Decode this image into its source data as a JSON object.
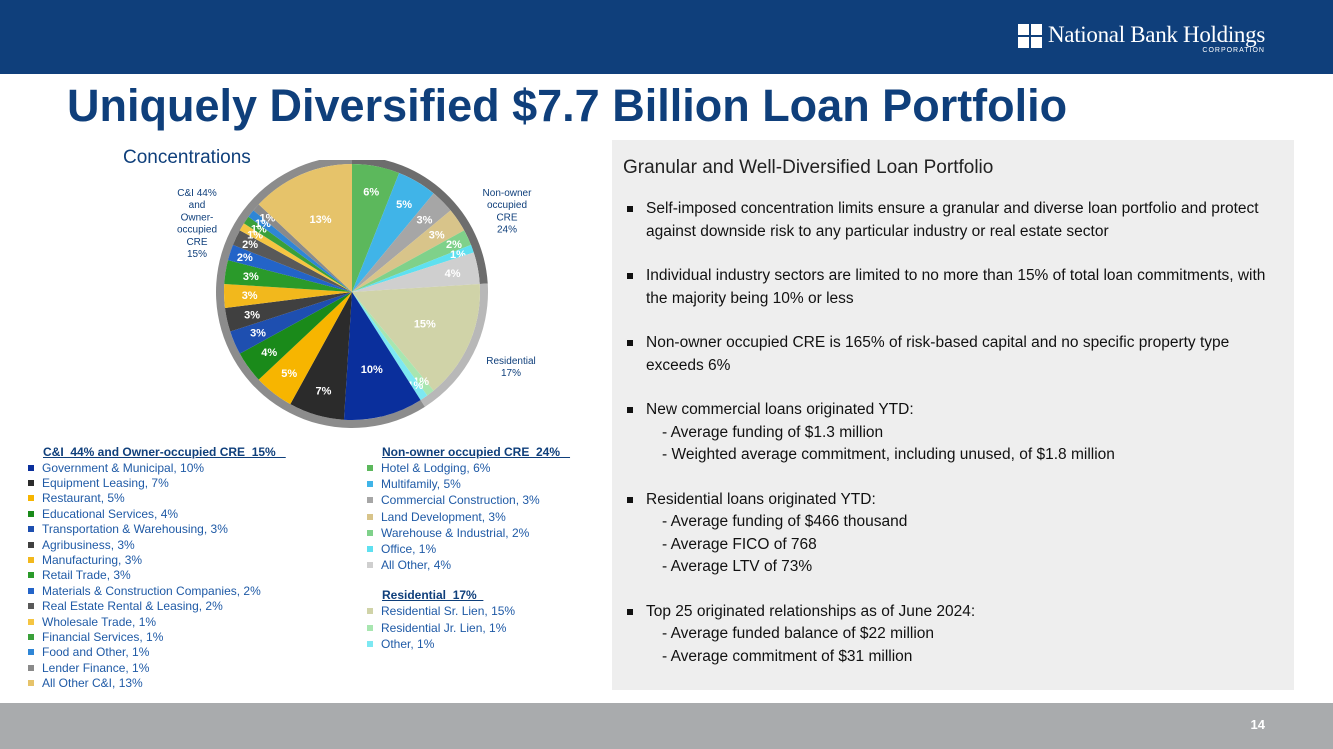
{
  "header": {
    "logo_text": "National Bank Holdings",
    "logo_sub": "CORPORATION"
  },
  "title": "Uniquely Diversified $7.7 Billion Loan Portfolio",
  "concentrations_label": "Concentrations",
  "chart_data": {
    "type": "pie",
    "title": "",
    "slices": [
      {
        "name": "Hotel & Lodging",
        "label": "6%",
        "value": 6,
        "color": "#5cb85c",
        "group": "Non-owner occupied CRE"
      },
      {
        "name": "Multifamily",
        "label": "5%",
        "value": 5,
        "color": "#40b4e8",
        "group": "Non-owner occupied CRE"
      },
      {
        "name": "Commercial Construction",
        "label": "3%",
        "value": 3,
        "color": "#a6a6a6",
        "group": "Non-owner occupied CRE"
      },
      {
        "name": "Land Development",
        "label": "3%",
        "value": 3,
        "color": "#d8c48a",
        "group": "Non-owner occupied CRE"
      },
      {
        "name": "Warehouse & Industrial",
        "label": "2%",
        "value": 2,
        "color": "#7fd18a",
        "group": "Non-owner occupied CRE"
      },
      {
        "name": "Office",
        "label": "1%",
        "value": 1,
        "color": "#5ee0f0",
        "group": "Non-owner occupied CRE"
      },
      {
        "name": "All Other",
        "label": "4%",
        "value": 4,
        "color": "#cfcfcf",
        "group": "Non-owner occupied CRE"
      },
      {
        "name": "Residential Sr. Lien",
        "label": "15%",
        "value": 15,
        "color": "#d0d3a8",
        "group": "Residential"
      },
      {
        "name": "Residential Jr. Lien",
        "label": "1%",
        "value": 1,
        "color": "#a8e6b0",
        "group": "Residential"
      },
      {
        "name": "Other",
        "label": "1%",
        "value": 1,
        "color": "#7de8f2",
        "group": "Residential"
      },
      {
        "name": "Government & Municipal",
        "label": "10%",
        "value": 10,
        "color": "#0a2f9c",
        "group": "C&I and Owner-occupied CRE"
      },
      {
        "name": "Equipment Leasing",
        "label": "7%",
        "value": 7,
        "color": "#2b2b2b",
        "group": "C&I and Owner-occupied CRE"
      },
      {
        "name": "Restaurant",
        "label": "5%",
        "value": 5,
        "color": "#f7b500",
        "group": "C&I and Owner-occupied CRE"
      },
      {
        "name": "Educational Services",
        "label": "4%",
        "value": 4,
        "color": "#1a8a1a",
        "group": "C&I and Owner-occupied CRE"
      },
      {
        "name": "Transportation & Warehousing",
        "label": "3%",
        "value": 3,
        "color": "#1e4fb0",
        "group": "C&I and Owner-occupied CRE"
      },
      {
        "name": "Agribusiness",
        "label": "3%",
        "value": 3,
        "color": "#404040",
        "group": "C&I and Owner-occupied CRE"
      },
      {
        "name": "Manufacturing",
        "label": "3%",
        "value": 3,
        "color": "#f2b81c",
        "group": "C&I and Owner-occupied CRE"
      },
      {
        "name": "Retail Trade",
        "label": "3%",
        "value": 3,
        "color": "#2a9a2a",
        "group": "C&I and Owner-occupied CRE"
      },
      {
        "name": "Materials & Construction Companies",
        "label": "2%",
        "value": 2,
        "color": "#2364c8",
        "group": "C&I and Owner-occupied CRE"
      },
      {
        "name": "Real Estate Rental & Leasing",
        "label": "2%",
        "value": 2,
        "color": "#595959",
        "group": "C&I and Owner-occupied CRE"
      },
      {
        "name": "Wholesale Trade",
        "label": "1%",
        "value": 1,
        "color": "#f5c542",
        "group": "C&I and Owner-occupied CRE"
      },
      {
        "name": "Financial Services",
        "label": "1%",
        "value": 1,
        "color": "#3aa03a",
        "group": "C&I and Owner-occupied CRE"
      },
      {
        "name": "Food and Other",
        "label": "1%",
        "value": 1,
        "color": "#2f86d6",
        "group": "C&I and Owner-occupied CRE"
      },
      {
        "name": "Lender Finance",
        "label": "1%",
        "value": 1,
        "color": "#8a8a8a",
        "group": "C&I and Owner-occupied CRE"
      },
      {
        "name": "All Other C&I",
        "label": "13%",
        "value": 13,
        "color": "#e6c36a",
        "group": "C&I and Owner-occupied CRE"
      }
    ],
    "group_labels": {
      "ci": [
        "C&I 44%",
        "and",
        "Owner-",
        "occupied",
        "CRE",
        "15%"
      ],
      "noo": [
        "Non-owner",
        "occupied",
        "CRE",
        "24%"
      ],
      "res": [
        "Residential",
        "17%"
      ]
    }
  },
  "legend": {
    "ci_header": "C&I  44% and Owner-occupied CRE  15%   ",
    "ci_items": [
      {
        "text": "Government & Municipal, 10%",
        "color": "#0a2f9c"
      },
      {
        "text": "Equipment Leasing, 7%",
        "color": "#2b2b2b"
      },
      {
        "text": "Restaurant, 5%",
        "color": "#f7b500"
      },
      {
        "text": "Educational Services, 4%",
        "color": "#1a8a1a"
      },
      {
        "text": "Transportation & Warehousing, 3%",
        "color": "#1e4fb0"
      },
      {
        "text": "Agribusiness, 3%",
        "color": "#404040"
      },
      {
        "text": "Manufacturing, 3%",
        "color": "#f2b81c"
      },
      {
        "text": "Retail Trade, 3%",
        "color": "#2a9a2a"
      },
      {
        "text": "Materials & Construction Companies, 2%",
        "color": "#2364c8"
      },
      {
        "text": "Real Estate Rental & Leasing, 2%",
        "color": "#595959"
      },
      {
        "text": "Wholesale Trade, 1%",
        "color": "#f5c542"
      },
      {
        "text": "Financial Services, 1%",
        "color": "#3aa03a"
      },
      {
        "text": "Food and Other, 1%",
        "color": "#2f86d6"
      },
      {
        "text": "Lender Finance, 1%",
        "color": "#8a8a8a"
      },
      {
        "text": "All Other C&I, 13%",
        "color": "#e6c36a"
      }
    ],
    "noo_header": "Non-owner occupied CRE  24%   ",
    "noo_items": [
      {
        "text": "Hotel & Lodging, 6%",
        "color": "#5cb85c"
      },
      {
        "text": "Multifamily, 5%",
        "color": "#40b4e8"
      },
      {
        "text": "Commercial Construction, 3%",
        "color": "#a6a6a6"
      },
      {
        "text": "Land Development, 3%",
        "color": "#d8c48a"
      },
      {
        "text": "Warehouse & Industrial, 2%",
        "color": "#7fd18a"
      },
      {
        "text": "Office, 1%",
        "color": "#5ee0f0"
      },
      {
        "text": "All Other, 4%",
        "color": "#cfcfcf"
      }
    ],
    "res_header": "Residential  17%  ",
    "res_items": [
      {
        "text": "Residential Sr. Lien, 15%",
        "color": "#d0d3a8"
      },
      {
        "text": "Residential Jr. Lien, 1%",
        "color": "#a8e6b0"
      },
      {
        "text": "Other, 1%",
        "color": "#7de8f2"
      }
    ]
  },
  "panel": {
    "title": "Granular and Well-Diversified Loan Portfolio",
    "b1": "Self-imposed concentration limits ensure a granular and diverse loan portfolio and protect against downside risk to any particular industry or real estate sector",
    "b2": "Individual industry sectors are limited to no more than 15% of total loan commitments, with the majority being 10% or less",
    "b3": "Non-owner occupied CRE is 165% of risk-based capital and no specific property type exceeds 6%",
    "b4": "New commercial loans originated YTD:",
    "b4_subs": [
      "- Average funding of $1.3 million",
      "-  Weighted average commitment, including unused, of $1.8 million"
    ],
    "b5": "Residential loans originated YTD:",
    "b5_subs": [
      "- Average funding of $466 thousand",
      "- Average FICO of 768",
      "- Average LTV of 73%"
    ],
    "b6": "Top 25 originated relationships as of June 2024:",
    "b6_subs": [
      "- Average funded balance of $22 million",
      "- Average commitment of $31 million"
    ]
  },
  "footer": {
    "page_number": "14"
  }
}
